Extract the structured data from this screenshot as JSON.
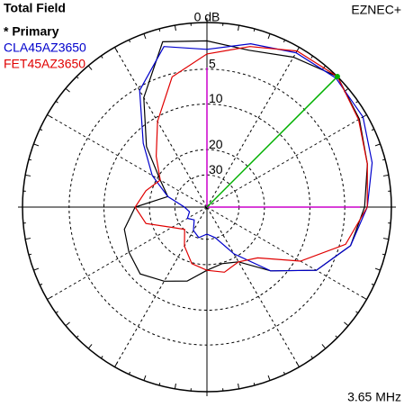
{
  "chart_data": {
    "type": "polar",
    "title": "Total Field",
    "program": "EZNEC+",
    "frequency": "3.65 MHz",
    "rticks": [
      {
        "value": 0,
        "label": "0 dB"
      },
      {
        "value": -5,
        "label": "5"
      },
      {
        "value": -10,
        "label": "10"
      },
      {
        "value": -20,
        "label": "20"
      },
      {
        "value": -30,
        "label": "30"
      }
    ],
    "angles": [
      0,
      15,
      30,
      45,
      60,
      75,
      90,
      105,
      120,
      135,
      150,
      165,
      180,
      195,
      210,
      225,
      240,
      255,
      270,
      285,
      300,
      315,
      330,
      345
    ],
    "series": [
      {
        "name": "* Primary",
        "color": "#000000",
        "values": [
          -2.7,
          -1.8,
          -0.8,
          0,
          -1.1,
          -2.2,
          -1.8,
          -1.3,
          -6.5,
          -13.2,
          -21.1,
          -26.0,
          -16.2,
          -13.2,
          -12.3,
          -11.5,
          -13.2,
          -15.1,
          -18.4,
          -19.7,
          -18.4,
          -12.3,
          -6.5,
          -3.7
        ]
      },
      {
        "name": "CLA45AZ3650",
        "color": "#0000cc",
        "values": [
          -2.4,
          -1.3,
          -0.4,
          -0.2,
          -0.6,
          -1.5,
          -2.7,
          -1.8,
          -5.4,
          -12.3,
          -18.4,
          -26.0,
          -36.1,
          -39.9,
          -36.1,
          -39.9,
          -33.0,
          -30.3,
          -33.0,
          -30.3,
          -21.1,
          -12.3,
          -6.5,
          -3.7
        ]
      },
      {
        "name": "FET45AZ3650",
        "color": "#e00000",
        "values": [
          -2.4,
          -1.8,
          -0.9,
          0,
          -0.4,
          -1.8,
          -3.2,
          -5.4,
          -10.7,
          -16.2,
          -21.1,
          -18.4,
          -16.2,
          -18.4,
          -26.0,
          -30.3,
          -24.2,
          -19.7,
          -18.4,
          -17.3,
          -18.4,
          -16.2,
          -9.2,
          -4.3
        ]
      }
    ],
    "max_gain": {
      "angle": 45,
      "value": 0,
      "color": "#00b000"
    }
  }
}
